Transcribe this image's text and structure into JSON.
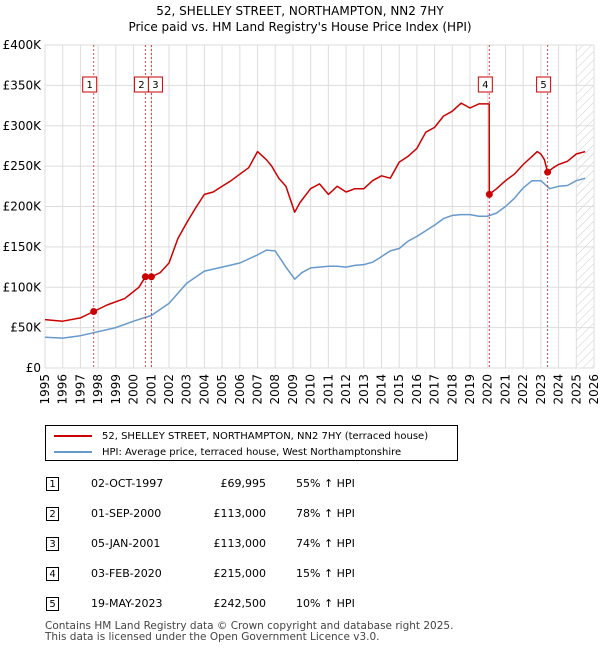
{
  "header": {
    "title": "52, SHELLEY STREET, NORTHAMPTON, NN2 7HY",
    "subtitle": "Price paid vs. HM Land Registry's House Price Index (HPI)"
  },
  "chart_data": {
    "type": "line",
    "xlim": [
      1995,
      2026
    ],
    "ylim": [
      0,
      400000
    ],
    "y_ticks": [
      0,
      50000,
      100000,
      150000,
      200000,
      250000,
      300000,
      350000,
      400000
    ],
    "y_tick_labels": [
      "£0",
      "£50K",
      "£100K",
      "£150K",
      "£200K",
      "£250K",
      "£300K",
      "£350K",
      "£400K"
    ],
    "x_ticks": [
      1995,
      1996,
      1997,
      1998,
      1999,
      2000,
      2001,
      2002,
      2003,
      2004,
      2005,
      2006,
      2007,
      2008,
      2009,
      2010,
      2011,
      2012,
      2013,
      2014,
      2015,
      2016,
      2017,
      2018,
      2019,
      2020,
      2021,
      2022,
      2023,
      2024,
      2025,
      2026
    ],
    "grid": true,
    "projection_start": 2025.0,
    "series": [
      {
        "name": "52, SHELLEY STREET, NORTHAMPTON, NN2 7HY (terraced house)",
        "color": "#cc0000",
        "x": [
          1995.0,
          1996.0,
          1997.0,
          1997.75,
          1998.5,
          1999.5,
          2000.3,
          2000.67,
          2001.01,
          2001.5,
          2002.0,
          2002.5,
          2003.0,
          2003.5,
          2004.0,
          2004.5,
          2005.0,
          2005.5,
          2006.0,
          2006.5,
          2007.0,
          2007.5,
          2007.8,
          2008.2,
          2008.6,
          2009.1,
          2009.4,
          2010.0,
          2010.5,
          2011.0,
          2011.5,
          2012.0,
          2012.5,
          2013.0,
          2013.5,
          2014.0,
          2014.5,
          2015.0,
          2015.5,
          2016.0,
          2016.5,
          2017.0,
          2017.5,
          2018.0,
          2018.5,
          2019.0,
          2019.5,
          2020.0,
          2020.08,
          2020.09,
          2020.5,
          2021.0,
          2021.5,
          2022.0,
          2022.5,
          2022.8,
          2023.0,
          2023.2,
          2023.38,
          2023.7,
          2024.0,
          2024.5,
          2025.0,
          2025.5
        ],
        "values": [
          60000,
          58000,
          62000,
          69995,
          78000,
          86000,
          100000,
          113000,
          113000,
          118000,
          130000,
          160000,
          180000,
          198000,
          215000,
          218000,
          225000,
          232000,
          240000,
          248000,
          268000,
          258000,
          250000,
          235000,
          225000,
          193000,
          205000,
          222000,
          228000,
          215000,
          225000,
          218000,
          222000,
          222000,
          232000,
          238000,
          235000,
          255000,
          262000,
          272000,
          292000,
          298000,
          312000,
          318000,
          328000,
          322000,
          327000,
          327000,
          327000,
          215000,
          222000,
          232000,
          240000,
          252000,
          262000,
          268000,
          265000,
          258000,
          242500,
          248000,
          252000,
          256000,
          265000,
          268000
        ],
        "sales": [
          {
            "n": "1",
            "x": 1997.75,
            "y": 69995
          },
          {
            "n": "2",
            "x": 2000.67,
            "y": 113000
          },
          {
            "n": "3",
            "x": 2001.01,
            "y": 113000
          },
          {
            "n": "4",
            "x": 2020.09,
            "y": 215000
          },
          {
            "n": "5",
            "x": 2023.38,
            "y": 242500
          }
        ]
      },
      {
        "name": "HPI: Average price, terraced house, West Northamptonshire",
        "color": "#6699cc",
        "x": [
          1995.0,
          1996.0,
          1997.0,
          1998.0,
          1999.0,
          2000.0,
          2001.0,
          2002.0,
          2003.0,
          2004.0,
          2005.0,
          2006.0,
          2007.0,
          2007.5,
          2008.0,
          2008.6,
          2009.1,
          2009.5,
          2010.0,
          2010.5,
          2011.0,
          2011.5,
          2012.0,
          2012.5,
          2013.0,
          2013.5,
          2014.0,
          2014.5,
          2015.0,
          2015.5,
          2016.0,
          2016.5,
          2017.0,
          2017.5,
          2018.0,
          2018.5,
          2019.0,
          2019.5,
          2020.0,
          2020.5,
          2021.0,
          2021.5,
          2022.0,
          2022.5,
          2023.0,
          2023.5,
          2024.0,
          2024.5,
          2025.0,
          2025.5
        ],
        "values": [
          38000,
          37000,
          40000,
          45000,
          50000,
          58000,
          65000,
          80000,
          105000,
          120000,
          125000,
          130000,
          140000,
          146000,
          145000,
          125000,
          110000,
          118000,
          124000,
          125000,
          126000,
          126000,
          125000,
          127000,
          128000,
          131000,
          138000,
          145000,
          148000,
          157000,
          163000,
          170000,
          177000,
          185000,
          189000,
          190000,
          190000,
          188000,
          188000,
          192000,
          200000,
          210000,
          223000,
          232000,
          232000,
          222000,
          225000,
          226000,
          232000,
          235000
        ]
      }
    ]
  },
  "legend": {
    "property_label": "52, SHELLEY STREET, NORTHAMPTON, NN2 7HY (terraced house)",
    "hpi_label": "HPI: Average price, terraced house, West Northamptonshire"
  },
  "sales_table": [
    {
      "n": "1",
      "date": "02-OCT-1997",
      "price": "£69,995",
      "pct": "55% ↑ HPI"
    },
    {
      "n": "2",
      "date": "01-SEP-2000",
      "price": "£113,000",
      "pct": "78% ↑ HPI"
    },
    {
      "n": "3",
      "date": "05-JAN-2001",
      "price": "£113,000",
      "pct": "74% ↑ HPI"
    },
    {
      "n": "4",
      "date": "03-FEB-2020",
      "price": "£215,000",
      "pct": "15% ↑ HPI"
    },
    {
      "n": "5",
      "date": "19-MAY-2023",
      "price": "£242,500",
      "pct": "10% ↑ HPI"
    }
  ],
  "footer": {
    "line1": "Contains HM Land Registry data © Crown copyright and database right 2025.",
    "line2": "This data is licensed under the Open Government Licence v3.0."
  }
}
